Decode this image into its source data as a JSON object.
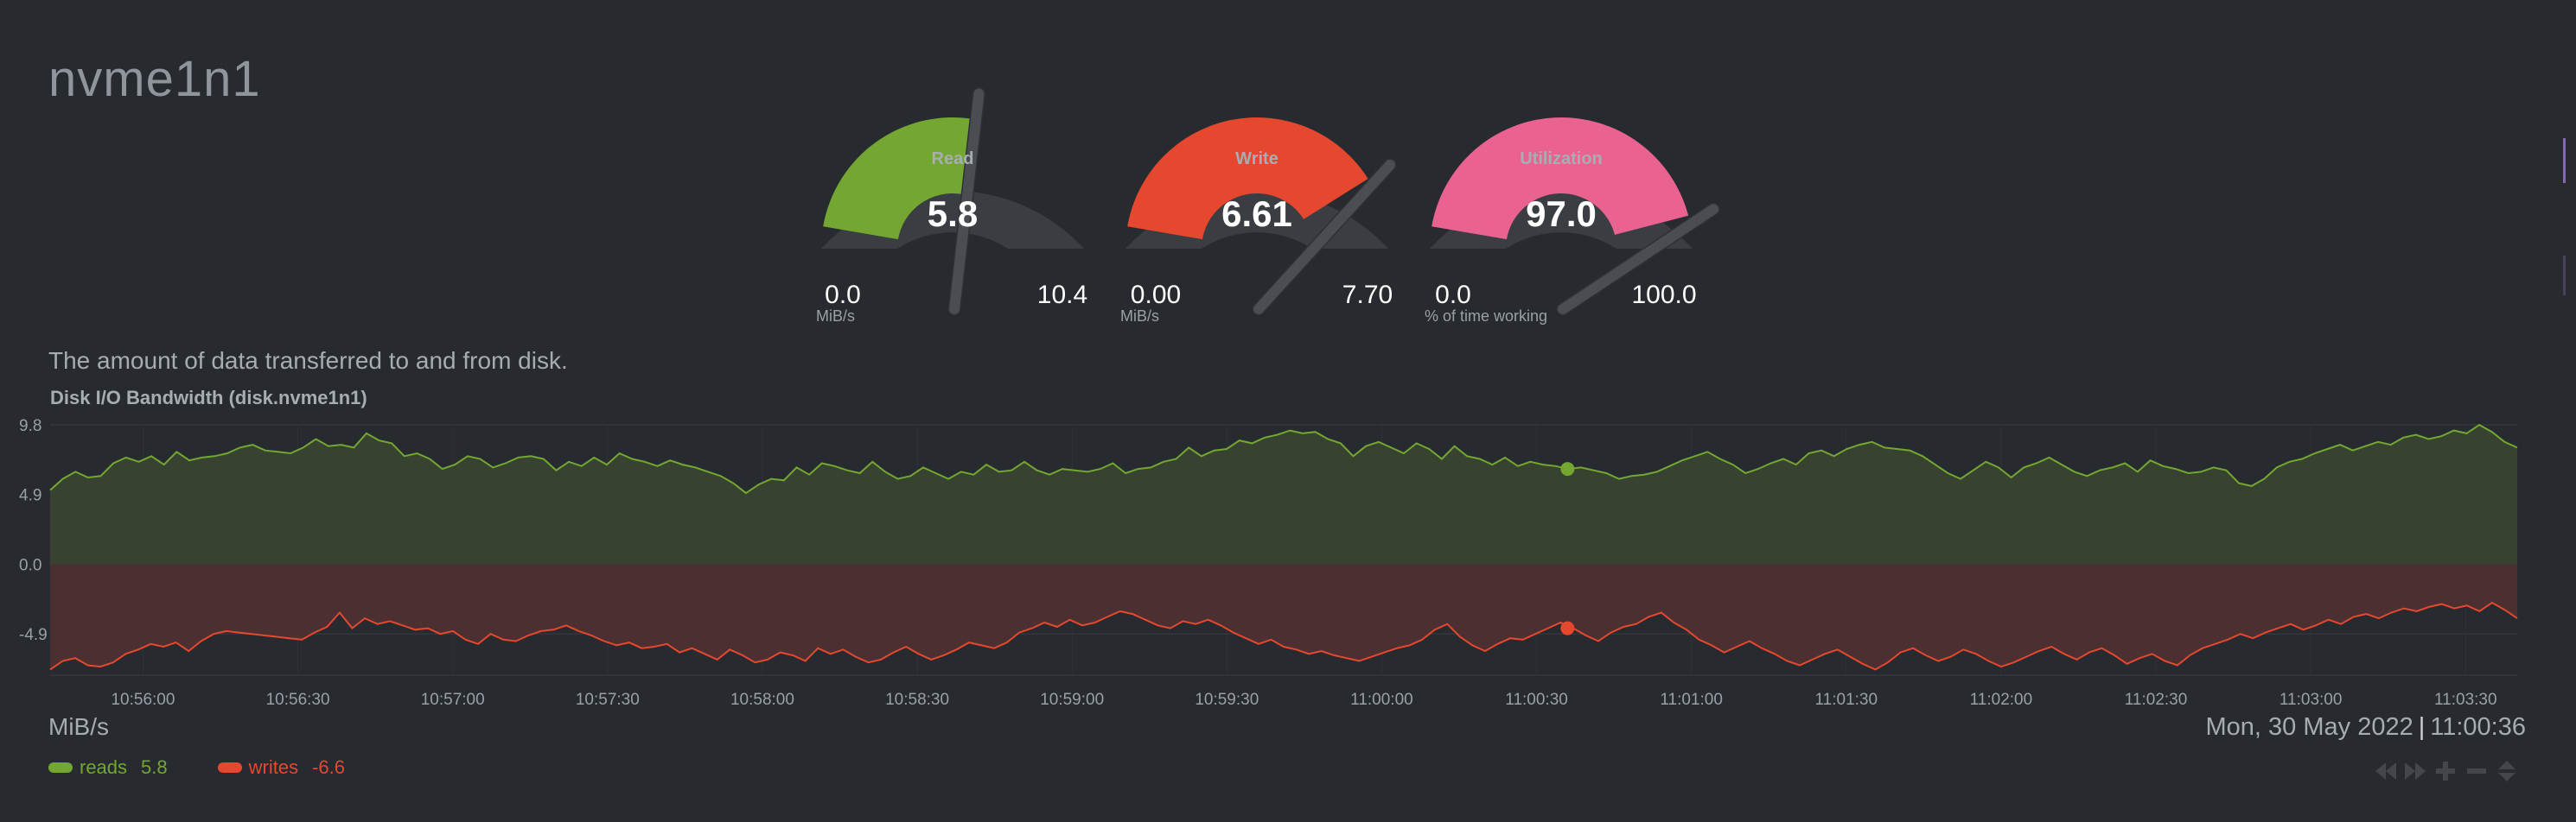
{
  "page": {
    "title": "nvme1n1",
    "description": "The amount of data transferred to and from disk."
  },
  "gauges": [
    {
      "label": "Read",
      "value": "5.8",
      "min": "0.0",
      "max": "10.4",
      "unit": "MiB/s",
      "fraction": 0.56,
      "color": "#73a731"
    },
    {
      "label": "Write",
      "value": "6.61",
      "min": "0.00",
      "max": "7.70",
      "unit": "MiB/s",
      "fraction": 0.86,
      "color": "#e6482f"
    },
    {
      "label": "Utilization",
      "value": "97.0",
      "min": "0.0",
      "max": "100.0",
      "unit": "% of time working",
      "fraction": 0.97,
      "color": "#ea6390"
    }
  ],
  "chart": {
    "title": "Disk I/O Bandwidth (disk.nvme1n1)",
    "units": "MiB/s",
    "datetime_date": "Mon, 30 May 2022",
    "datetime_sep": "|",
    "datetime_time": "11:00:36"
  },
  "legend": [
    {
      "name": "reads",
      "value": "5.8",
      "color": "#73a731"
    },
    {
      "name": "writes",
      "value": "-6.6",
      "color": "#e6482f"
    }
  ],
  "chart_data": {
    "type": "area",
    "title": "Disk I/O Bandwidth (disk.nvme1n1)",
    "xlabel": "",
    "ylabel": "MiB/s",
    "ylim": [
      -7.7,
      9.8
    ],
    "yticks": [
      "9.8",
      "4.9",
      "0.0",
      "-4.9"
    ],
    "yticks_values": [
      9.8,
      4.9,
      0,
      -4.9
    ],
    "xticks": [
      "10:56:00",
      "10:56:30",
      "10:57:00",
      "10:57:30",
      "10:58:00",
      "10:58:30",
      "10:59:00",
      "10:59:30",
      "11:00:00",
      "11:00:30",
      "11:01:00",
      "11:01:30",
      "11:02:00",
      "11:02:30",
      "11:03:00",
      "11:03:30"
    ],
    "x_start": "10:55:42",
    "x_end": "11:03:40",
    "highlight_time": "11:00:36",
    "grid": true,
    "series": [
      {
        "name": "reads",
        "color": "#73a731",
        "fill": "#374330",
        "values": [
          5.2,
          6.0,
          6.5,
          6.1,
          6.2,
          7.1,
          7.5,
          7.2,
          7.6,
          7.0,
          7.9,
          7.3,
          7.5,
          7.6,
          7.8,
          8.2,
          8.4,
          8.0,
          7.9,
          7.8,
          8.2,
          8.8,
          8.3,
          8.4,
          8.2,
          9.2,
          8.7,
          8.5,
          7.6,
          7.8,
          7.4,
          6.7,
          7.0,
          7.6,
          7.4,
          6.8,
          7.1,
          7.5,
          7.6,
          7.4,
          6.6,
          7.2,
          6.9,
          7.5,
          7.0,
          7.8,
          7.4,
          7.2,
          6.9,
          7.3,
          7.0,
          6.8,
          6.5,
          6.2,
          5.7,
          5.0,
          5.6,
          6.0,
          5.9,
          6.8,
          6.3,
          7.1,
          6.9,
          6.6,
          6.4,
          7.2,
          6.5,
          6.0,
          6.2,
          6.8,
          6.4,
          6.0,
          6.5,
          6.3,
          7.0,
          6.5,
          6.6,
          7.2,
          6.6,
          6.3,
          6.7,
          6.6,
          6.5,
          6.7,
          7.1,
          6.4,
          6.7,
          6.8,
          7.2,
          7.4,
          8.2,
          7.6,
          8.0,
          8.1,
          8.7,
          8.5,
          8.9,
          9.1,
          9.4,
          9.2,
          9.3,
          8.8,
          8.5,
          7.6,
          8.3,
          8.6,
          8.2,
          7.8,
          8.5,
          8.1,
          7.4,
          8.3,
          7.6,
          7.4,
          7.0,
          7.5,
          6.9,
          7.2,
          7.0,
          6.9,
          6.7,
          6.8,
          6.6,
          6.4,
          6.0,
          6.2,
          6.3,
          6.5,
          6.9,
          7.3,
          7.6,
          7.9,
          7.4,
          7.0,
          6.4,
          6.7,
          7.1,
          7.4,
          7.0,
          7.8,
          8.0,
          7.6,
          8.1,
          8.4,
          8.6,
          8.2,
          8.1,
          8.0,
          7.6,
          7.0,
          6.4,
          6.0,
          6.6,
          7.2,
          6.8,
          6.1,
          6.8,
          7.1,
          7.5,
          7.0,
          6.5,
          6.2,
          6.6,
          6.8,
          7.1,
          6.5,
          7.3,
          6.9,
          6.7,
          6.4,
          6.5,
          6.8,
          6.6,
          5.7,
          5.5,
          6.0,
          6.8,
          7.2,
          7.4,
          7.8,
          8.1,
          8.4,
          8.0,
          8.3,
          8.6,
          8.4,
          8.9,
          9.1,
          8.8,
          9.0,
          9.4,
          9.2,
          9.8,
          9.3,
          8.6,
          8.2
        ]
      },
      {
        "name": "writes",
        "color": "#e6482f",
        "fill": "#4c2f30",
        "values": [
          -7.4,
          -6.8,
          -6.6,
          -7.1,
          -7.2,
          -6.9,
          -6.3,
          -6.0,
          -5.6,
          -5.8,
          -5.5,
          -6.1,
          -5.4,
          -4.9,
          -4.7,
          -4.8,
          -4.9,
          -5.0,
          -5.1,
          -5.2,
          -5.3,
          -4.8,
          -4.4,
          -3.4,
          -4.5,
          -3.8,
          -4.2,
          -4.0,
          -4.3,
          -4.6,
          -4.5,
          -4.9,
          -4.7,
          -5.3,
          -5.6,
          -4.9,
          -5.3,
          -5.4,
          -5.0,
          -4.7,
          -4.6,
          -4.3,
          -4.7,
          -5.0,
          -5.4,
          -5.7,
          -5.5,
          -5.9,
          -5.8,
          -5.6,
          -6.2,
          -5.9,
          -6.3,
          -6.7,
          -6.0,
          -6.4,
          -6.9,
          -6.7,
          -6.2,
          -6.4,
          -6.8,
          -5.9,
          -6.3,
          -6.0,
          -6.5,
          -6.9,
          -6.7,
          -6.2,
          -5.8,
          -6.3,
          -6.7,
          -6.4,
          -6.0,
          -5.5,
          -5.7,
          -5.9,
          -5.5,
          -4.8,
          -4.5,
          -4.1,
          -4.4,
          -3.9,
          -4.3,
          -4.1,
          -3.7,
          -3.3,
          -3.5,
          -3.9,
          -4.3,
          -4.5,
          -4.0,
          -4.2,
          -3.9,
          -4.3,
          -4.8,
          -5.2,
          -5.6,
          -5.3,
          -5.8,
          -6.0,
          -6.3,
          -6.1,
          -6.4,
          -6.6,
          -6.8,
          -6.5,
          -6.2,
          -5.9,
          -5.7,
          -5.3,
          -4.6,
          -4.2,
          -5.1,
          -5.7,
          -6.1,
          -5.6,
          -5.2,
          -5.3,
          -4.9,
          -4.5,
          -4.1,
          -4.5,
          -5.0,
          -5.4,
          -4.8,
          -4.4,
          -4.2,
          -3.7,
          -3.4,
          -4.1,
          -4.6,
          -5.3,
          -5.7,
          -6.2,
          -5.8,
          -5.4,
          -5.9,
          -6.3,
          -6.8,
          -7.1,
          -6.7,
          -6.3,
          -6.0,
          -6.5,
          -7.0,
          -7.4,
          -6.9,
          -6.2,
          -5.9,
          -6.4,
          -6.8,
          -6.5,
          -6.0,
          -6.3,
          -6.8,
          -7.2,
          -6.9,
          -6.5,
          -6.1,
          -5.8,
          -6.3,
          -6.7,
          -6.2,
          -5.9,
          -6.4,
          -7.0,
          -6.6,
          -6.3,
          -6.8,
          -7.1,
          -6.4,
          -5.9,
          -5.6,
          -5.3,
          -4.9,
          -5.2,
          -4.8,
          -4.5,
          -4.2,
          -4.6,
          -4.3,
          -3.9,
          -4.2,
          -3.7,
          -3.5,
          -3.8,
          -3.4,
          -3.1,
          -3.3,
          -3.0,
          -2.8,
          -3.1,
          -2.9,
          -3.3,
          -2.7,
          -3.2,
          -3.8
        ]
      }
    ]
  }
}
